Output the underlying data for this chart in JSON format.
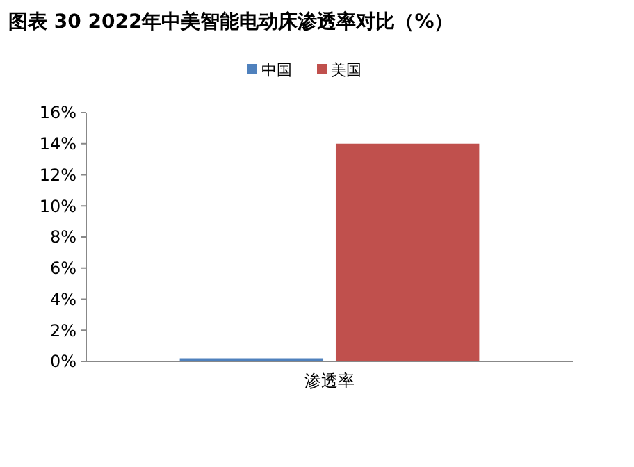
{
  "chart_data": {
    "type": "bar",
    "title": "图表 30 2022年中美智能电动床渗透率对比（%）",
    "categories": [
      "渗透率"
    ],
    "series": [
      {
        "name": "中国",
        "color": "#4f81bd",
        "values": [
          0.2
        ]
      },
      {
        "name": "美国",
        "color": "#c0504d",
        "values": [
          14
        ]
      }
    ],
    "ylim": [
      0,
      16
    ],
    "yticks": [
      {
        "value": 0,
        "label": "0%"
      },
      {
        "value": 2,
        "label": "2%"
      },
      {
        "value": 4,
        "label": "4%"
      },
      {
        "value": 6,
        "label": "6%"
      },
      {
        "value": 8,
        "label": "8%"
      },
      {
        "value": 10,
        "label": "10%"
      },
      {
        "value": 12,
        "label": "12%"
      },
      {
        "value": 14,
        "label": "14%"
      },
      {
        "value": 16,
        "label": "16%"
      }
    ],
    "grid": false,
    "legend": "top"
  }
}
